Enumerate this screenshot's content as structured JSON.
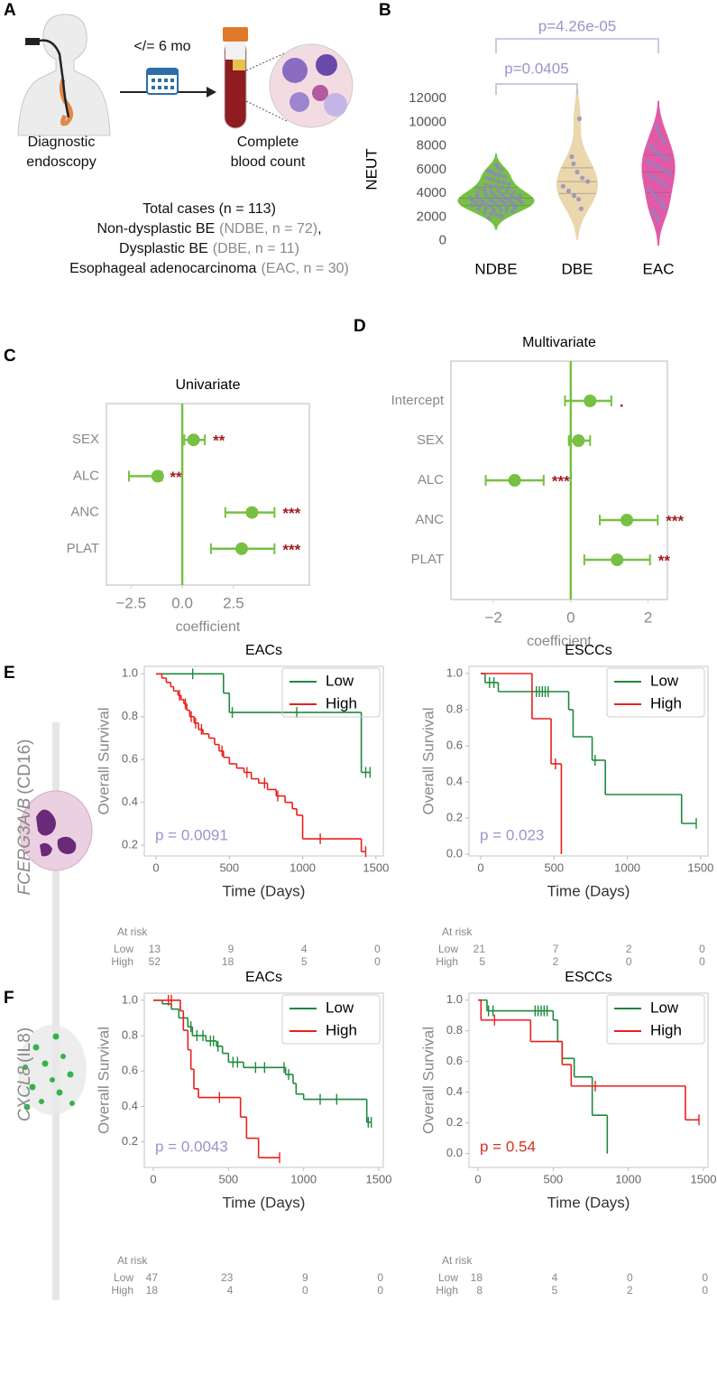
{
  "panel_labels": [
    "A",
    "B",
    "C",
    "D",
    "E",
    "F"
  ],
  "panel_a": {
    "interval": "</= 6 mo",
    "step1": [
      "Diagnostic",
      "endoscopy"
    ],
    "step2": [
      "Complete",
      "blood count"
    ],
    "summary": [
      [
        "Total cases (n = 113)"
      ],
      [
        "Non-dysplastic BE",
        "(NDBE, n = 72)",
        ","
      ],
      [
        "Dysplastic BE",
        "(DBE, n = 11)"
      ],
      [
        "Esophageal adenocarcinoma",
        "(EAC, n = 30)"
      ]
    ]
  },
  "genes": [
    {
      "symbol": "FCERG3A/B",
      "alias": "(CD16)"
    },
    {
      "symbol": "CXCL8",
      "alias": "(IL8)"
    }
  ],
  "chart_data": [
    {
      "type": "violin",
      "ylabel": "NEUT",
      "categories": [
        "NDBE",
        "DBE",
        "EAC"
      ],
      "colors": [
        "#77c043",
        "#ead7ad",
        "#e25aa6"
      ],
      "point_color": "#8e86c0",
      "values": [
        [
          1900,
          2000,
          2100,
          2200,
          2300,
          2400,
          2500,
          2500,
          2600,
          2600,
          2700,
          2700,
          2800,
          2800,
          2900,
          2900,
          3000,
          3000,
          3000,
          3100,
          3100,
          3100,
          3200,
          3200,
          3200,
          3300,
          3300,
          3300,
          3400,
          3400,
          3400,
          3500,
          3500,
          3500,
          3600,
          3600,
          3600,
          3700,
          3700,
          3700,
          3800,
          3800,
          3900,
          3900,
          4000,
          4000,
          4100,
          4100,
          4200,
          4200,
          4300,
          4400,
          4400,
          4500,
          4600,
          4600,
          4700,
          4800,
          4900,
          5000,
          5100,
          5200,
          5300,
          5400,
          5500,
          5600,
          5700,
          5800,
          5900,
          6000,
          6200,
          6400
        ],
        [
          2700,
          3500,
          3800,
          4200,
          4600,
          5000,
          5300,
          5800,
          6500,
          7100,
          10300
        ],
        [
          1800,
          2200,
          2500,
          2800,
          3100,
          3400,
          3700,
          4000,
          4300,
          4600,
          4900,
          5100,
          5300,
          5500,
          5700,
          5900,
          6100,
          6300,
          6500,
          6700,
          6900,
          7100,
          7300,
          7500,
          7800,
          8000,
          8400,
          8800,
          9200,
          9600
        ]
      ],
      "ylim": [
        -1400,
        12700
      ],
      "yticks": [
        0,
        2000,
        4000,
        6000,
        8000,
        10000,
        12000
      ],
      "annotations": [
        "p=0.0405",
        "p=4.26e-05"
      ],
      "annotation_color": "#9d93cb"
    },
    {
      "type": "forest",
      "title": "Univariate",
      "xlabel": "coefficient",
      "categories": [
        "SEX",
        "ALC",
        "ANC",
        "PLAT"
      ],
      "values": [
        0.55,
        -1.2,
        3.4,
        2.9
      ],
      "lower": [
        0.1,
        -2.6,
        2.1,
        1.4
      ],
      "upper": [
        1.1,
        -1.0,
        4.5,
        4.5
      ],
      "stars": [
        "**",
        "**",
        "***",
        "***"
      ],
      "color": "#77c043",
      "star_color": "#a31a1f",
      "xlim": [
        -3.7,
        6.2
      ],
      "xticks": [
        {
          "value": -2.5,
          "label": "−2.5"
        },
        {
          "value": 0,
          "label": "0.0"
        },
        2.5
      ]
    },
    {
      "type": "forest",
      "title": "Multivariate",
      "xlabel": "coefficient",
      "categories": [
        "Intercept",
        "SEX",
        "ALC",
        "ANC",
        "PLAT"
      ],
      "values": [
        0.5,
        0.2,
        -1.45,
        1.45,
        1.2
      ],
      "lower": [
        -0.15,
        -0.05,
        -2.2,
        0.75,
        0.35
      ],
      "upper": [
        1.05,
        0.5,
        -0.7,
        2.25,
        2.05
      ],
      "stars": [
        ".",
        null,
        "***",
        "***",
        "**"
      ],
      "color": "#77c043",
      "star_color": "#a31a1f",
      "xlim": [
        -3.1,
        2.5
      ],
      "xticks": [
        {
          "value": -2,
          "label": "−2"
        },
        0,
        2
      ]
    },
    {
      "type": "km",
      "title": "EACs",
      "xlabel": "Time (Days)",
      "ylabel": "Overall Survival",
      "pvalue": "p = 0.0091",
      "pvalue_color": "#9d93cb",
      "risk_title": "At risk",
      "xlim": [
        -80,
        1550
      ],
      "xticks": [
        0,
        500,
        1000,
        1500
      ],
      "ylim": [
        0.15,
        1.035
      ],
      "yticks": [
        0.2,
        0.4,
        0.6,
        0.8,
        {
          "value": 1,
          "label": "1.0"
        }
      ],
      "series": [
        {
          "name": "Low",
          "color": "#1e8a3c",
          "x": [
            0,
            460,
            500,
            1400
          ],
          "values": [
            1,
            0.91,
            0.82,
            0.54
          ],
          "censor": [
            250,
            520,
            960,
            1430,
            1460
          ],
          "at_risk": [
            13,
            9,
            4,
            0
          ]
        },
        {
          "name": "High",
          "color": "#e8201c",
          "x": [
            0,
            40,
            70,
            100,
            120,
            150,
            170,
            190,
            210,
            230,
            260,
            290,
            320,
            360,
            400,
            430,
            460,
            500,
            550,
            600,
            650,
            700,
            760,
            820,
            880,
            930,
            960,
            1000,
            1400
          ],
          "values": [
            1,
            0.98,
            0.96,
            0.94,
            0.92,
            0.9,
            0.88,
            0.86,
            0.83,
            0.8,
            0.77,
            0.74,
            0.72,
            0.7,
            0.67,
            0.64,
            0.61,
            0.58,
            0.56,
            0.54,
            0.51,
            0.49,
            0.46,
            0.43,
            0.4,
            0.37,
            0.34,
            0.23,
            0.17
          ],
          "censor": [
            160,
            200,
            240,
            270,
            310,
            450,
            620,
            740,
            830,
            1120,
            1430
          ],
          "at_risk": [
            52,
            18,
            5,
            0
          ]
        }
      ]
    },
    {
      "type": "km",
      "title": "ESCCs",
      "xlabel": "Time (Days)",
      "ylabel": "Overall Survival",
      "pvalue": "p = 0.023",
      "pvalue_color": "#9d93cb",
      "risk_title": "At risk",
      "xlim": [
        -80,
        1550
      ],
      "xticks": [
        0,
        500,
        1000,
        1500
      ],
      "ylim": [
        -0.01,
        1.04
      ],
      "yticks": [
        {
          "value": 0,
          "label": "0.0"
        },
        0.2,
        0.4,
        0.6,
        0.8,
        {
          "value": 1,
          "label": "1.0"
        }
      ],
      "series": [
        {
          "name": "Low",
          "color": "#1e8a3c",
          "x": [
            0,
            30,
            120,
            600,
            630,
            760,
            850,
            1370
          ],
          "values": [
            1,
            0.95,
            0.9,
            0.8,
            0.65,
            0.52,
            0.33,
            0.17
          ],
          "censor": [
            60,
            90,
            380,
            400,
            420,
            440,
            460,
            780,
            1470
          ],
          "at_risk": [
            21,
            7,
            2,
            0
          ]
        },
        {
          "name": "High",
          "color": "#e8201c",
          "x": [
            0,
            350,
            480,
            550
          ],
          "values": [
            1,
            0.75,
            0.5,
            0
          ],
          "censor": [
            510
          ],
          "at_risk": [
            5,
            2,
            0,
            0
          ]
        }
      ]
    },
    {
      "type": "km",
      "title": "EACs",
      "xlabel": "Time (Days)",
      "ylabel": "Overall Survival",
      "pvalue": "p = 0.0043",
      "pvalue_color": "#9d93cb",
      "risk_title": "At risk",
      "xlim": [
        -60,
        1530
      ],
      "xticks": [
        0,
        500,
        1000,
        1500
      ],
      "ylim": [
        0.055,
        1.04
      ],
      "yticks": [
        0.2,
        0.4,
        0.6,
        0.8,
        {
          "value": 1,
          "label": "1.0"
        }
      ],
      "series": [
        {
          "name": "Low",
          "color": "#1e8a3c",
          "x": [
            0,
            60,
            120,
            170,
            230,
            260,
            350,
            420,
            460,
            500,
            600,
            880,
            930,
            950,
            1000,
            1420
          ],
          "values": [
            1,
            0.98,
            0.95,
            0.9,
            0.85,
            0.8,
            0.77,
            0.74,
            0.7,
            0.65,
            0.62,
            0.58,
            0.53,
            0.47,
            0.44,
            0.31
          ],
          "censor": [
            200,
            250,
            290,
            330,
            380,
            400,
            430,
            530,
            560,
            680,
            740,
            870,
            900,
            1110,
            1220,
            1430,
            1450
          ],
          "at_risk": [
            47,
            23,
            9,
            0
          ]
        },
        {
          "name": "High",
          "color": "#e8201c",
          "x": [
            0,
            180,
            200,
            230,
            250,
            270,
            300,
            580,
            620,
            700
          ],
          "values": [
            1,
            0.94,
            0.83,
            0.72,
            0.61,
            0.5,
            0.45,
            0.34,
            0.22,
            0.11
          ],
          "censor": [
            100,
            120,
            440,
            840
          ],
          "at_risk": [
            18,
            4,
            0,
            0
          ]
        }
      ]
    },
    {
      "type": "km",
      "title": "ESCCs",
      "xlabel": "Time (Days)",
      "ylabel": "Overall Survival",
      "pvalue": "p = 0.54",
      "pvalue_color": "#d7301f",
      "risk_title": "At risk",
      "xlim": [
        -60,
        1530
      ],
      "xticks": [
        0,
        500,
        1000,
        1500
      ],
      "ylim": [
        -0.09,
        1.045
      ],
      "yticks": [
        {
          "value": 0,
          "label": "0.0"
        },
        0.2,
        0.4,
        0.6,
        0.8,
        {
          "value": 1,
          "label": "1.0"
        }
      ],
      "series": [
        {
          "name": "Low",
          "color": "#1e8a3c",
          "x": [
            0,
            60,
            500,
            530,
            560,
            640,
            760,
            860
          ],
          "values": [
            1,
            0.93,
            0.87,
            0.73,
            0.62,
            0.5,
            0.25,
            0
          ],
          "censor": [
            70,
            100,
            380,
            400,
            420,
            440,
            460
          ],
          "at_risk": [
            18,
            4,
            0,
            0
          ]
        },
        {
          "name": "High",
          "color": "#e8201c",
          "x": [
            0,
            20,
            350,
            560,
            620,
            1380
          ],
          "values": [
            1,
            0.87,
            0.73,
            0.58,
            0.44,
            0.22
          ],
          "censor": [
            110,
            780,
            1470
          ],
          "at_risk": [
            8,
            5,
            2,
            0
          ]
        }
      ]
    }
  ]
}
